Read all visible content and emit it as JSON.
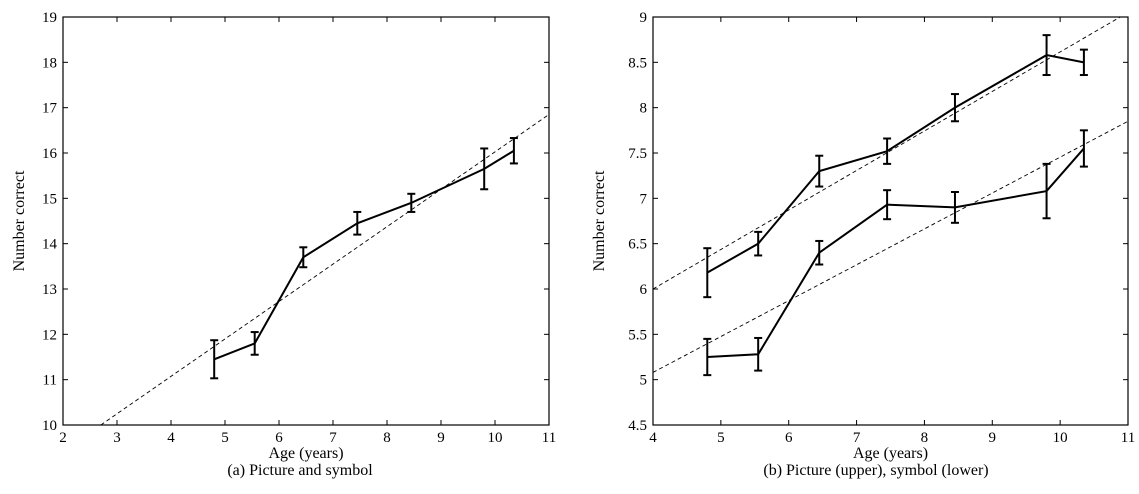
{
  "chart_data": [
    {
      "type": "line",
      "caption": "(a)  Picture and symbol",
      "xlabel": "Age (years)",
      "ylabel": "Number correct",
      "xlim": [
        2,
        11
      ],
      "ylim": [
        10,
        19
      ],
      "xticks": [
        "2",
        "3",
        "4",
        "5",
        "6",
        "7",
        "8",
        "9",
        "10",
        "11"
      ],
      "yticks": [
        "10",
        "11",
        "12",
        "13",
        "14",
        "15",
        "16",
        "17",
        "18",
        "19"
      ],
      "series": [
        {
          "x": [
            4.8,
            5.55,
            6.45,
            7.45,
            8.45,
            9.8,
            10.35
          ],
          "y": [
            11.45,
            11.8,
            13.7,
            14.45,
            14.9,
            15.65,
            16.05
          ],
          "err": [
            0.42,
            0.25,
            0.22,
            0.25,
            0.2,
            0.45,
            0.28
          ]
        }
      ],
      "fit_lines": [
        {
          "style": "dashed",
          "x": [
            2.7,
            11.0
          ],
          "y": [
            10.0,
            16.85
          ]
        }
      ],
      "grid": false
    },
    {
      "type": "line",
      "caption": "(b)  Picture (upper), symbol (lower)",
      "xlabel": "Age (years)",
      "ylabel": "Number correct",
      "xlim": [
        4,
        11
      ],
      "ylim": [
        4.5,
        9
      ],
      "xticks": [
        "4",
        "5",
        "6",
        "7",
        "8",
        "9",
        "10",
        "11"
      ],
      "yticks": [
        "4.5",
        "5",
        "5.5",
        "6",
        "6.5",
        "7",
        "7.5",
        "8",
        "8.5",
        "9"
      ],
      "series": [
        {
          "x": [
            4.8,
            5.55,
            6.45,
            7.45,
            8.45,
            9.8,
            10.35
          ],
          "y": [
            6.18,
            6.5,
            7.3,
            7.52,
            8.0,
            8.58,
            8.5
          ],
          "err": [
            0.27,
            0.13,
            0.17,
            0.14,
            0.15,
            0.22,
            0.14
          ]
        },
        {
          "x": [
            4.8,
            5.55,
            6.45,
            7.45,
            8.45,
            9.8,
            10.35
          ],
          "y": [
            5.25,
            5.28,
            6.4,
            6.93,
            6.9,
            7.08,
            7.55
          ],
          "err": [
            0.2,
            0.18,
            0.13,
            0.16,
            0.17,
            0.3,
            0.2
          ]
        }
      ],
      "fit_lines": [
        {
          "style": "dashed",
          "x": [
            4.0,
            11.0
          ],
          "y": [
            6.0,
            9.05
          ]
        },
        {
          "style": "dashed",
          "x": [
            4.0,
            11.0
          ],
          "y": [
            5.08,
            7.85
          ]
        }
      ],
      "grid": false
    }
  ]
}
